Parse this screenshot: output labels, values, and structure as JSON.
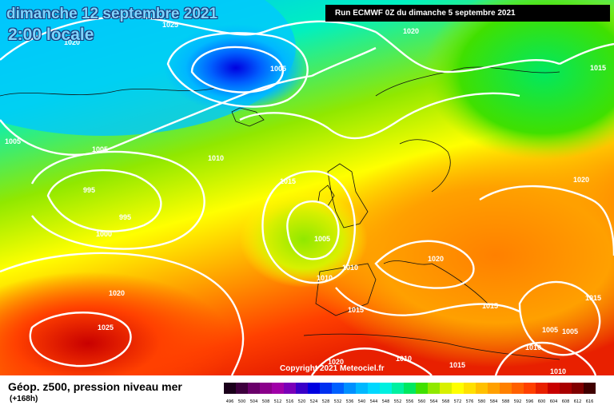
{
  "header": {
    "date": "dimanche 12 septembre 2021",
    "time": "2:00 locale",
    "run": "Run ECMWF 0Z du dimanche 5 septembre 2021"
  },
  "copyright": "Copyright 2021 Meteociel.fr",
  "legend": {
    "title": "Géop. z500, pression niveau mer",
    "subtitle": "(+168h)",
    "levels": [
      "496",
      "500",
      "504",
      "508",
      "512",
      "516",
      "520",
      "524",
      "528",
      "532",
      "536",
      "540",
      "544",
      "548",
      "552",
      "556",
      "560",
      "564",
      "568",
      "572",
      "576",
      "580",
      "584",
      "588",
      "592",
      "596",
      "600",
      "604",
      "608",
      "612",
      "616"
    ],
    "colors": [
      "#1a001a",
      "#3d003d",
      "#6a006a",
      "#8a008a",
      "#a000a8",
      "#7a00b8",
      "#3a00c8",
      "#0000e0",
      "#0030f0",
      "#0060ff",
      "#0090ff",
      "#00b8ff",
      "#00d8ff",
      "#00f0e0",
      "#00f0a0",
      "#00e860",
      "#40e000",
      "#90e800",
      "#d8f000",
      "#ffff00",
      "#ffe000",
      "#ffc000",
      "#ffa000",
      "#ff8000",
      "#ff6000",
      "#ff4000",
      "#e82000",
      "#c80000",
      "#a80000",
      "#800000",
      "#400000"
    ]
  },
  "isobar_labels": [
    {
      "id": "iso-1025-top",
      "text": "1025"
    },
    {
      "id": "iso-1020-top",
      "text": "1020"
    },
    {
      "id": "iso-1015-right",
      "text": "1015"
    },
    {
      "id": "iso-1005-low",
      "text": "1005"
    },
    {
      "id": "iso-1005-west",
      "text": "1005"
    },
    {
      "id": "iso-1005-mid",
      "text": "1005"
    },
    {
      "id": "iso-1010-center",
      "text": "1010"
    },
    {
      "id": "iso-995-a",
      "text": "995"
    },
    {
      "id": "iso-995-b",
      "text": "995"
    },
    {
      "id": "iso-1000",
      "text": "1000"
    },
    {
      "id": "iso-1015-center",
      "text": "1015"
    },
    {
      "id": "iso-1005-bay",
      "text": "1005"
    },
    {
      "id": "iso-1010-a",
      "text": "1010"
    },
    {
      "id": "iso-1010-b",
      "text": "1010"
    },
    {
      "id": "iso-1020-alps",
      "text": "1020"
    },
    {
      "id": "iso-1020-east",
      "text": "1020"
    },
    {
      "id": "iso-1020-sw",
      "text": "1020"
    },
    {
      "id": "iso-1025-sw",
      "text": "1025"
    },
    {
      "id": "iso-1015-iberia",
      "text": "1015"
    },
    {
      "id": "iso-1015-balkan",
      "text": "1015"
    },
    {
      "id": "iso-1015-east",
      "text": "1015"
    },
    {
      "id": "iso-1005-se1",
      "text": "1005"
    },
    {
      "id": "iso-1005-se2",
      "text": "1005"
    },
    {
      "id": "iso-1010-se",
      "text": "1010"
    },
    {
      "id": "iso-1020-bottom",
      "text": "1020"
    },
    {
      "id": "iso-1010-bottom",
      "text": "1010"
    },
    {
      "id": "iso-1015-bottom",
      "text": "1015"
    },
    {
      "id": "iso-1010-corner",
      "text": "1010"
    },
    {
      "id": "iso-1020-tl",
      "text": "1020"
    }
  ]
}
